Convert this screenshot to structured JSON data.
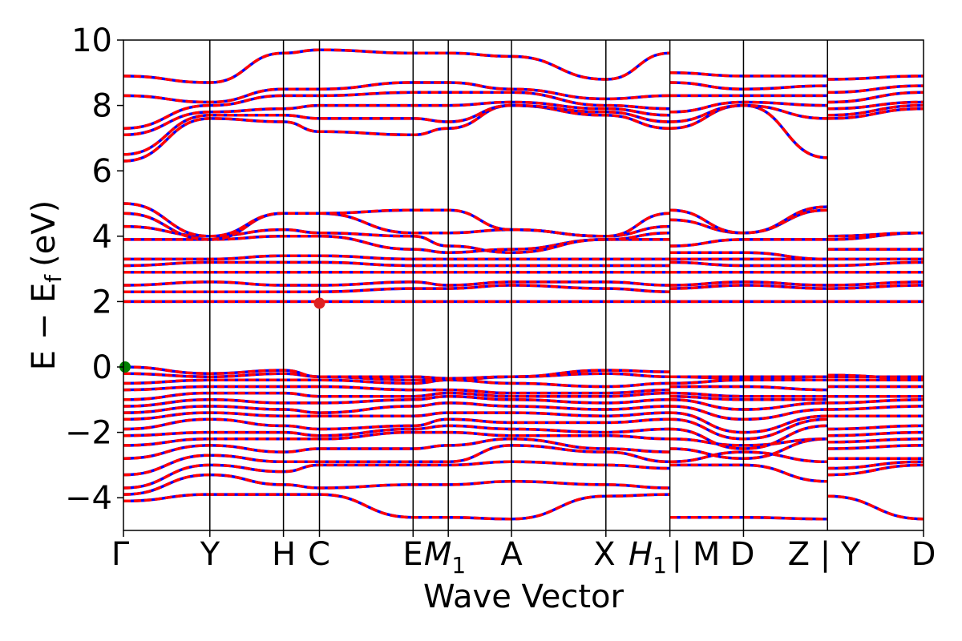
{
  "chart_data": {
    "type": "line",
    "xlabel": "Wave Vector",
    "ylabel": "E − E_f (eV)",
    "ylabel_parts": {
      "main": "E − E",
      "sub": "f",
      "unit": "(eV)"
    },
    "ylim": [
      -5,
      10
    ],
    "yticks": [
      {
        "value": -4,
        "label": "−4"
      },
      {
        "value": -2,
        "label": "−2"
      },
      {
        "value": 0,
        "label": "0"
      },
      {
        "value": 2,
        "label": "2"
      },
      {
        "value": 4,
        "label": "4"
      },
      {
        "value": 6,
        "label": "6"
      },
      {
        "value": 8,
        "label": "8"
      },
      {
        "value": 10,
        "label": "10"
      }
    ],
    "kpoints": [
      {
        "label": "Γ",
        "pos": 0.0
      },
      {
        "label": "Y",
        "pos": 0.108
      },
      {
        "label": "H",
        "pos": 0.2
      },
      {
        "label": "C",
        "pos": 0.245
      },
      {
        "label": "E",
        "pos": 0.362
      },
      {
        "label": "M",
        "sub": "1",
        "pos": 0.406
      },
      {
        "label": "A",
        "pos": 0.485
      },
      {
        "label": "X",
        "pos": 0.603
      },
      {
        "label": "H",
        "sub": "1",
        "pos": 0.683
      },
      {
        "label": "| M",
        "pos": 0.683
      },
      {
        "label": "D",
        "pos": 0.775
      },
      {
        "label": "Z | Y",
        "pos": 0.88
      },
      {
        "label": "D",
        "pos": 1.0
      }
    ],
    "vlines": [
      0.108,
      0.2,
      0.245,
      0.362,
      0.406,
      0.485,
      0.603,
      0.683,
      0.775,
      0.88
    ],
    "band_colors": {
      "primary": "#ff0000",
      "secondary": "#0000ff"
    },
    "vbm_marker": {
      "x": 0.0,
      "y": 0.0,
      "color": "#008000"
    },
    "cbm_marker": {
      "x": 0.245,
      "y": 1.95,
      "color": "#dd2222"
    },
    "bands": [
      [
        -4.1,
        -3.9,
        -3.9,
        -3.9,
        -4.6,
        -4.6,
        -4.65,
        -3.95,
        -3.9,
        -4.6,
        -4.6,
        -4.65,
        -3.95,
        -4.65
      ],
      [
        -3.9,
        -3.3,
        -3.6,
        -3.7,
        -3.6,
        -3.6,
        -3.5,
        -3.6,
        -3.7,
        -3.0,
        -3.0,
        -3.5,
        -3.3,
        -3.0
      ],
      [
        -3.7,
        -3.0,
        -3.2,
        -3.0,
        -3.0,
        -3.0,
        -2.9,
        -3.0,
        -3.1,
        -2.9,
        -2.6,
        -2.9,
        -3.1,
        -2.9
      ],
      [
        -3.3,
        -2.7,
        -2.9,
        -2.9,
        -2.9,
        -2.9,
        -2.4,
        -2.6,
        -2.9,
        -2.5,
        -2.8,
        -2.2,
        -2.8,
        -2.8
      ],
      [
        -2.8,
        -2.4,
        -2.6,
        -2.5,
        -2.5,
        -2.4,
        -2.2,
        -2.5,
        -2.6,
        -2.2,
        -2.4,
        -2.2,
        -2.5,
        -2.4
      ],
      [
        -2.4,
        -2.2,
        -2.2,
        -2.2,
        -2.0,
        -2.0,
        -2.1,
        -2.1,
        -2.2,
        -1.9,
        -2.5,
        -1.8,
        -2.3,
        -2.2
      ],
      [
        -2.1,
        -2.0,
        -2.0,
        -2.1,
        -1.9,
        -1.8,
        -1.9,
        -2.0,
        -1.9,
        -1.6,
        -2.2,
        -1.6,
        -2.1,
        -2.0
      ],
      [
        -1.9,
        -1.6,
        -1.8,
        -1.9,
        -1.8,
        -1.6,
        -1.7,
        -1.7,
        -1.6,
        -1.4,
        -2.0,
        -1.5,
        -1.9,
        -1.8
      ],
      [
        -1.6,
        -1.4,
        -1.5,
        -1.5,
        -1.5,
        -1.4,
        -1.4,
        -1.5,
        -1.4,
        -1.2,
        -1.6,
        -1.3,
        -1.5,
        -1.5
      ],
      [
        -1.4,
        -1.2,
        -1.3,
        -1.4,
        -1.2,
        -1.1,
        -1.2,
        -1.3,
        -1.2,
        -1.0,
        -1.3,
        -1.1,
        -1.3,
        -1.2
      ],
      [
        -1.2,
        -1.0,
        -1.1,
        -1.1,
        -1.0,
        -0.9,
        -1.0,
        -1.1,
        -1.0,
        -0.9,
        -1.0,
        -1.0,
        -1.1,
        -1.0
      ],
      [
        -1.0,
        -0.8,
        -0.8,
        -0.9,
        -0.9,
        -0.8,
        -0.9,
        -0.9,
        -0.8,
        -0.8,
        -0.9,
        -0.9,
        -0.9,
        -0.9
      ],
      [
        -0.7,
        -0.6,
        -0.6,
        -0.6,
        -0.7,
        -0.7,
        -0.8,
        -0.8,
        -0.7,
        -0.6,
        -0.6,
        -0.7,
        -0.6,
        -0.6
      ],
      [
        -0.5,
        -0.4,
        -0.4,
        -0.4,
        -0.5,
        -0.4,
        -0.5,
        -0.6,
        -0.5,
        -0.5,
        -0.4,
        -0.4,
        -0.4,
        -0.4
      ],
      [
        -0.2,
        -0.3,
        -0.2,
        -0.3,
        -0.4,
        -0.4,
        -0.3,
        -0.2,
        -0.3,
        -0.3,
        -0.3,
        -0.3,
        -0.3,
        -0.3
      ],
      [
        0.0,
        -0.2,
        -0.1,
        -0.3,
        -0.3,
        -0.35,
        -0.3,
        -0.1,
        -0.15,
        -0.3,
        -0.35,
        -0.3,
        -0.25,
        -0.35
      ],
      [
        2.0,
        2.0,
        2.0,
        2.0,
        2.0,
        2.0,
        2.0,
        2.0,
        2.0,
        2.0,
        2.0,
        2.0,
        2.0,
        2.0
      ],
      [
        2.3,
        2.3,
        2.3,
        2.3,
        2.4,
        2.4,
        2.5,
        2.4,
        2.3,
        2.4,
        2.5,
        2.4,
        2.4,
        2.5
      ],
      [
        2.5,
        2.6,
        2.5,
        2.5,
        2.6,
        2.5,
        2.6,
        2.6,
        2.5,
        2.5,
        2.6,
        2.5,
        2.5,
        2.6
      ],
      [
        2.9,
        2.9,
        2.9,
        2.9,
        2.9,
        2.9,
        2.9,
        2.9,
        2.9,
        2.9,
        2.9,
        2.9,
        2.9,
        2.9
      ],
      [
        3.1,
        3.2,
        3.2,
        3.2,
        3.1,
        3.1,
        3.1,
        3.1,
        3.1,
        3.2,
        3.1,
        3.1,
        3.1,
        3.2
      ],
      [
        3.3,
        3.3,
        3.4,
        3.4,
        3.3,
        3.3,
        3.3,
        3.3,
        3.3,
        3.3,
        3.3,
        3.3,
        3.3,
        3.3
      ],
      [
        3.9,
        3.9,
        4.0,
        4.0,
        3.6,
        3.5,
        3.6,
        3.9,
        3.9,
        3.5,
        3.5,
        3.3,
        3.6,
        3.6
      ],
      [
        4.3,
        4.0,
        4.2,
        4.1,
        4.0,
        3.7,
        3.5,
        3.9,
        4.1,
        3.7,
        3.9,
        3.9,
        3.9,
        4.1
      ],
      [
        4.7,
        3.9,
        4.7,
        4.7,
        4.1,
        4.1,
        4.2,
        4.0,
        4.3,
        4.5,
        4.1,
        4.8,
        4.0,
        4.1
      ],
      [
        5.0,
        4.0,
        4.7,
        4.7,
        4.8,
        4.8,
        4.2,
        4.0,
        4.7,
        4.8,
        4.1,
        4.9,
        4.0,
        4.1
      ],
      [
        6.3,
        7.6,
        7.5,
        7.2,
        7.1,
        7.3,
        8.0,
        7.7,
        7.3,
        7.3,
        8.0,
        6.4,
        7.6,
        7.9
      ],
      [
        6.5,
        7.7,
        7.7,
        7.6,
        7.6,
        7.5,
        8.0,
        7.8,
        7.5,
        7.5,
        8.0,
        7.6,
        7.7,
        8.0
      ],
      [
        7.1,
        7.8,
        7.9,
        8.0,
        8.0,
        8.0,
        8.1,
        7.9,
        7.7,
        7.8,
        8.1,
        8.0,
        7.9,
        8.1
      ],
      [
        7.3,
        8.0,
        8.3,
        8.3,
        8.4,
        8.4,
        8.4,
        8.0,
        7.9,
        8.3,
        8.3,
        8.3,
        8.1,
        8.4
      ],
      [
        8.3,
        8.1,
        8.5,
        8.5,
        8.7,
        8.7,
        8.5,
        8.2,
        8.3,
        8.7,
        8.5,
        8.6,
        8.4,
        8.6
      ],
      [
        8.9,
        8.7,
        9.6,
        9.7,
        9.6,
        9.6,
        9.5,
        8.8,
        9.6,
        9.0,
        8.9,
        8.9,
        8.8,
        8.9
      ]
    ]
  }
}
